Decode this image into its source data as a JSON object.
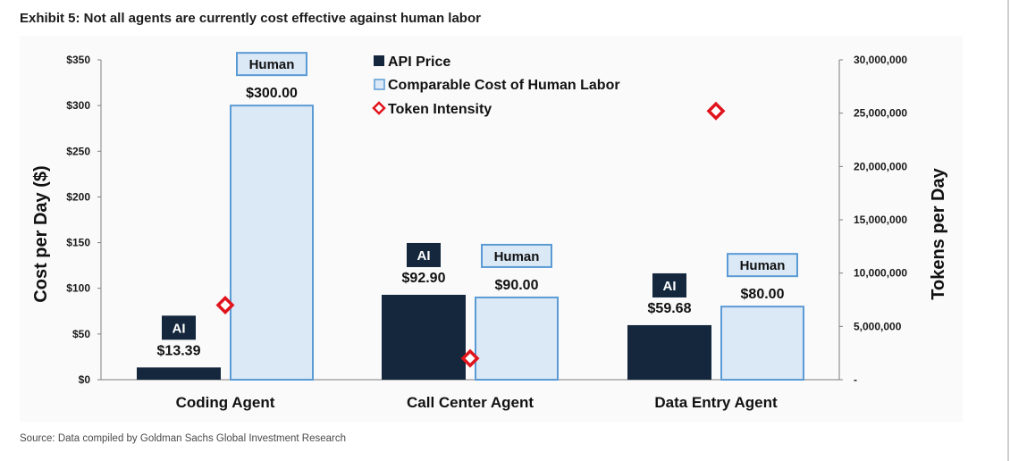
{
  "header": {
    "title": "Exhibit 5: Not all agents are currently cost effective against human labor",
    "source": "Source: Data compiled by Goldman Sachs Global Investment Research"
  },
  "colors": {
    "api": "#14273d",
    "human_fill": "#dbe8f6",
    "human_stroke": "#5b9bd5",
    "token": "#e0141c"
  },
  "chart_data": {
    "type": "bar",
    "categories": [
      "Coding Agent",
      "Call Center Agent",
      "Data Entry Agent"
    ],
    "series": [
      {
        "name": "API Price",
        "axis": "left",
        "values": [
          13.39,
          92.9,
          59.68
        ],
        "labels": [
          "$13.39",
          "$92.90",
          "$59.68"
        ],
        "box_label": "AI"
      },
      {
        "name": "Comparable Cost of Human Labor",
        "axis": "left",
        "values": [
          300.0,
          90.0,
          80.0
        ],
        "labels": [
          "$300.00",
          "$90.00",
          "$80.00"
        ],
        "box_label": "Human"
      },
      {
        "name": "Token Intensity",
        "axis": "right",
        "marker": "diamond",
        "values": [
          7000000,
          2000000,
          25200000
        ]
      }
    ],
    "ylabel": "Cost per Day ($)",
    "y2label": "Tokens per Day",
    "ylim": [
      0,
      350
    ],
    "y2lim": [
      0,
      30000000
    ],
    "yticks": [
      "$0",
      "$50",
      "$100",
      "$150",
      "$200",
      "$250",
      "$300",
      "$350"
    ],
    "y2ticks": [
      "-",
      "5,000,000",
      "10,000,000",
      "15,000,000",
      "20,000,000",
      "25,000,000",
      "30,000,000"
    ],
    "legend": "top-center",
    "grid": false
  }
}
